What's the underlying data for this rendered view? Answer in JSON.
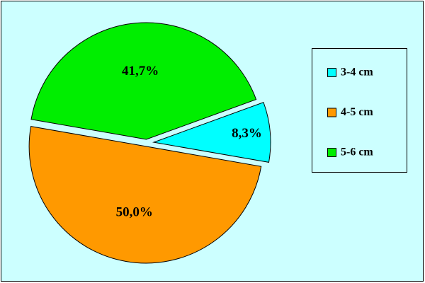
{
  "chart_data": {
    "type": "pie",
    "categories": [
      "3-4 cm",
      "4-5 cm",
      "5-6 cm"
    ],
    "values": [
      8.3,
      50.0,
      41.7
    ],
    "value_labels": [
      "8,3%",
      "50,0%",
      "41,7%"
    ],
    "colors": [
      "#00ffff",
      "#ff9900",
      "#00ee00"
    ],
    "legend": "right"
  }
}
